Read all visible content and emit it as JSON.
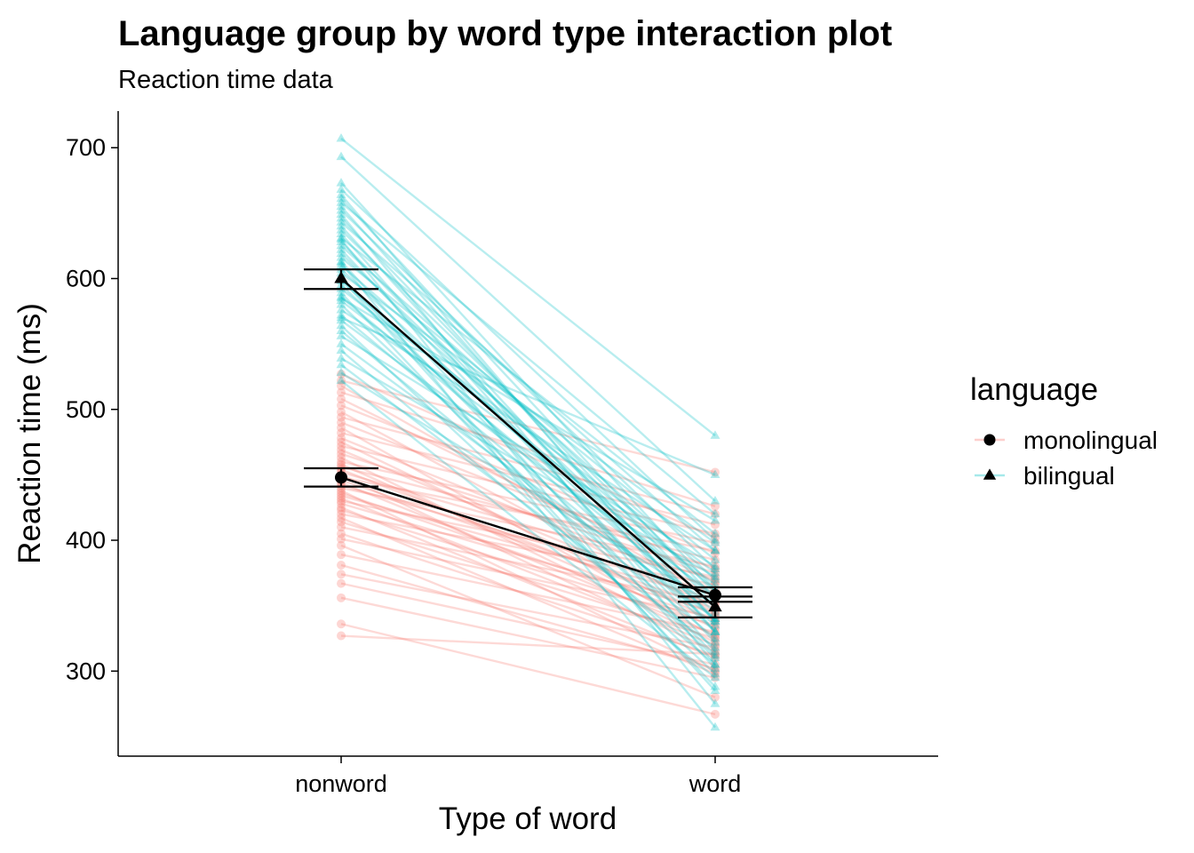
{
  "chart_data": {
    "type": "line",
    "title": "Language group by word type interaction plot",
    "subtitle": "Reaction time data",
    "xlabel": "Type of word",
    "ylabel": "Reaction time (ms)",
    "categories": [
      "nonword",
      "word"
    ],
    "ylim": [
      235,
      728
    ],
    "yticks": [
      300,
      400,
      500,
      600,
      700
    ],
    "grid": false,
    "legend": {
      "title": "language",
      "position": "right",
      "entries": [
        {
          "label": "monolingual",
          "shape": "circle",
          "color": "#F8766D"
        },
        {
          "label": "bilingual",
          "shape": "triangle",
          "color": "#00BFC4"
        }
      ]
    },
    "series": [
      {
        "name": "monolingual",
        "shape": "circle",
        "color": "#F8766D",
        "mean": [
          448,
          358
        ],
        "error": [
          [
            441,
            455
          ],
          [
            353,
            364
          ]
        ],
        "subjects": [
          [
            327,
            313
          ],
          [
            336,
            267
          ],
          [
            356,
            295
          ],
          [
            367,
            305
          ],
          [
            374,
            318
          ],
          [
            381,
            302
          ],
          [
            389,
            330
          ],
          [
            396,
            280
          ],
          [
            401,
            341
          ],
          [
            405,
            312
          ],
          [
            410,
            352
          ],
          [
            414,
            325
          ],
          [
            417,
            298
          ],
          [
            420,
            366
          ],
          [
            423,
            335
          ],
          [
            425,
            310
          ],
          [
            428,
            345
          ],
          [
            430,
            372
          ],
          [
            432,
            320
          ],
          [
            434,
            355
          ],
          [
            436,
            339
          ],
          [
            438,
            300
          ],
          [
            440,
            380
          ],
          [
            442,
            360
          ],
          [
            444,
            328
          ],
          [
            446,
            348
          ],
          [
            448,
            392
          ],
          [
            450,
            315
          ],
          [
            452,
            370
          ],
          [
            454,
            343
          ],
          [
            456,
            385
          ],
          [
            458,
            333
          ],
          [
            460,
            398
          ],
          [
            463,
            322
          ],
          [
            466,
            375
          ],
          [
            469,
            350
          ],
          [
            472,
            405
          ],
          [
            475,
            338
          ],
          [
            478,
            362
          ],
          [
            482,
            412
          ],
          [
            486,
            326
          ],
          [
            490,
            378
          ],
          [
            494,
            420
          ],
          [
            498,
            345
          ],
          [
            503,
            390
          ],
          [
            508,
            368
          ],
          [
            513,
            426
          ],
          [
            518,
            356
          ],
          [
            522,
            452
          ],
          [
            527,
            402
          ]
        ]
      },
      {
        "name": "bilingual",
        "shape": "triangle",
        "color": "#00BFC4",
        "mean": [
          600,
          349
        ],
        "error": [
          [
            592,
            607
          ],
          [
            341,
            357
          ]
        ],
        "subjects": [
          [
            522,
            295
          ],
          [
            528,
            350
          ],
          [
            534,
            318
          ],
          [
            539,
            372
          ],
          [
            545,
            305
          ],
          [
            550,
            340
          ],
          [
            556,
            380
          ],
          [
            560,
            325
          ],
          [
            564,
            298
          ],
          [
            568,
            358
          ],
          [
            572,
            335
          ],
          [
            576,
            392
          ],
          [
            580,
            310
          ],
          [
            583,
            366
          ],
          [
            586,
            345
          ],
          [
            589,
            288
          ],
          [
            592,
            375
          ],
          [
            595,
            330
          ],
          [
            598,
            355
          ],
          [
            601,
            312
          ],
          [
            604,
            398
          ],
          [
            607,
            340
          ],
          [
            610,
            362
          ],
          [
            613,
            302
          ],
          [
            616,
            385
          ],
          [
            619,
            348
          ],
          [
            622,
            322
          ],
          [
            625,
            370
          ],
          [
            628,
            338
          ],
          [
            631,
            405
          ],
          [
            634,
            315
          ],
          [
            637,
            360
          ],
          [
            640,
            330
          ],
          [
            643,
            392
          ],
          [
            646,
            350
          ],
          [
            649,
            305
          ],
          [
            652,
            378
          ],
          [
            655,
            338
          ],
          [
            658,
            420
          ],
          [
            661,
            355
          ],
          [
            664,
            330
          ],
          [
            668,
            400
          ],
          [
            673,
            362
          ],
          [
            693,
            430
          ],
          [
            707,
            480
          ],
          [
            630,
            275
          ],
          [
            612,
            257
          ],
          [
            585,
            415
          ],
          [
            570,
            450
          ],
          [
            600,
            285
          ]
        ]
      }
    ]
  }
}
